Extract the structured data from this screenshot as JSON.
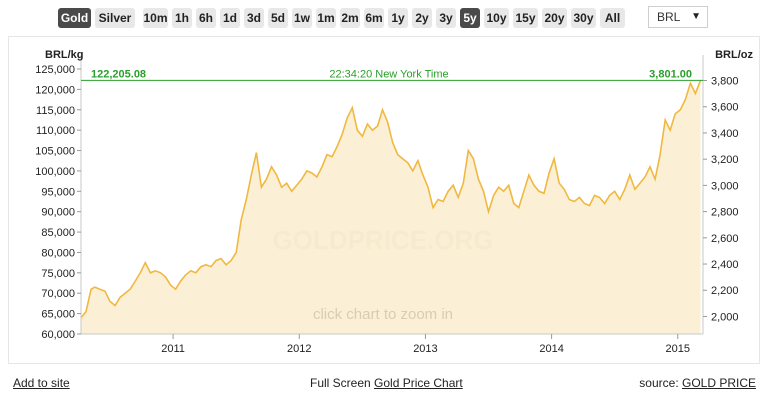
{
  "toolbar": {
    "metals": [
      {
        "label": "Gold",
        "active": true
      },
      {
        "label": "Silver",
        "active": false
      }
    ],
    "ranges": [
      {
        "label": "10m",
        "active": false
      },
      {
        "label": "1h",
        "active": false
      },
      {
        "label": "6h",
        "active": false
      },
      {
        "label": "1d",
        "active": false
      },
      {
        "label": "3d",
        "active": false
      },
      {
        "label": "5d",
        "active": false
      },
      {
        "label": "1w",
        "active": false
      },
      {
        "label": "1m",
        "active": false
      },
      {
        "label": "2m",
        "active": false
      },
      {
        "label": "6m",
        "active": false
      },
      {
        "label": "1y",
        "active": false
      },
      {
        "label": "2y",
        "active": false
      },
      {
        "label": "3y",
        "active": false
      },
      {
        "label": "5y",
        "active": true
      },
      {
        "label": "10y",
        "active": false
      },
      {
        "label": "15y",
        "active": false
      },
      {
        "label": "20y",
        "active": false
      },
      {
        "label": "30y",
        "active": false
      },
      {
        "label": "All",
        "active": false
      }
    ],
    "currency": "BRL",
    "currency_caret": "▼"
  },
  "chart_data": {
    "type": "area",
    "left_axis_unit": "BRL/kg",
    "right_axis_unit": "BRL/oz",
    "current_price_kg": "122,205.08",
    "current_price_oz": "3,801.00",
    "timestamp": "22:34:20 New York Time",
    "watermark": "GOLDPRICE.ORG",
    "hint": "click chart to zoom in",
    "ylim": [
      60000,
      125000
    ],
    "y_ticks": [
      "60,000",
      "65,000",
      "70,000",
      "75,000",
      "80,000",
      "85,000",
      "90,000",
      "95,000",
      "100,000",
      "105,000",
      "110,000",
      "115,000",
      "120,000",
      "125,000"
    ],
    "y_tick_values": [
      60000,
      65000,
      70000,
      75000,
      80000,
      85000,
      90000,
      95000,
      100000,
      105000,
      110000,
      115000,
      120000,
      125000
    ],
    "y2_ticks": [
      "2,000",
      "2,200",
      "2,400",
      "2,600",
      "2,800",
      "3,000",
      "3,200",
      "3,400",
      "3,600",
      "3,800"
    ],
    "y2_tick_values": [
      2000,
      2200,
      2400,
      2600,
      2800,
      3000,
      3200,
      3400,
      3600,
      3800
    ],
    "xlim": [
      2010.27,
      2015.2
    ],
    "x_ticks": [
      "2011",
      "2012",
      "2013",
      "2014",
      "2015"
    ],
    "x_tick_values": [
      2011,
      2012,
      2013,
      2014,
      2015
    ],
    "line_color": "#f0b840",
    "fill_color": "#fbf0d6",
    "marker_color": "#2aa02a",
    "series": [
      {
        "x": [
          2010.27,
          2010.31,
          2010.35,
          2010.38,
          2010.42,
          2010.46,
          2010.5,
          2010.54,
          2010.58,
          2010.62,
          2010.66,
          2010.7,
          2010.74,
          2010.78,
          2010.82,
          2010.86,
          2010.9,
          2010.94,
          2010.98,
          2011.02,
          2011.06,
          2011.1,
          2011.14,
          2011.18,
          2011.22,
          2011.26,
          2011.3,
          2011.34,
          2011.38,
          2011.42,
          2011.46,
          2011.5,
          2011.54,
          2011.58,
          2011.62,
          2011.66,
          2011.7,
          2011.74,
          2011.78,
          2011.82,
          2011.86,
          2011.9,
          2011.94,
          2011.98,
          2012.02,
          2012.06,
          2012.1,
          2012.14,
          2012.18,
          2012.22,
          2012.26,
          2012.3,
          2012.34,
          2012.38,
          2012.42,
          2012.46,
          2012.5,
          2012.54,
          2012.58,
          2012.62,
          2012.66,
          2012.7,
          2012.74,
          2012.78,
          2012.82,
          2012.86,
          2012.9,
          2012.94,
          2012.98,
          2013.02,
          2013.06,
          2013.1,
          2013.14,
          2013.18,
          2013.22,
          2013.26,
          2013.3,
          2013.34,
          2013.38,
          2013.42,
          2013.46,
          2013.5,
          2013.54,
          2013.58,
          2013.62,
          2013.66,
          2013.7,
          2013.74,
          2013.78,
          2013.82,
          2013.86,
          2013.9,
          2013.94,
          2013.98,
          2014.02,
          2014.06,
          2014.1,
          2014.14,
          2014.18,
          2014.22,
          2014.26,
          2014.3,
          2014.34,
          2014.38,
          2014.42,
          2014.46,
          2014.5,
          2014.54,
          2014.58,
          2014.62,
          2014.66,
          2014.7,
          2014.74,
          2014.78,
          2014.82,
          2014.86,
          2014.9,
          2014.94,
          2014.98,
          2015.02,
          2015.06,
          2015.1,
          2015.14,
          2015.18
        ],
        "values": [
          64000,
          65500,
          71000,
          71500,
          71000,
          70500,
          68000,
          67000,
          69000,
          70000,
          71000,
          73000,
          75000,
          77500,
          75000,
          75500,
          75000,
          74000,
          72000,
          71000,
          73000,
          74500,
          75500,
          75000,
          76500,
          77000,
          76500,
          78000,
          78500,
          77000,
          78000,
          80000,
          88000,
          93000,
          99000,
          104500,
          96000,
          98000,
          101000,
          99000,
          96000,
          97000,
          95000,
          96500,
          98000,
          100000,
          99500,
          98500,
          101000,
          104000,
          103500,
          106000,
          109000,
          113000,
          115500,
          110000,
          108500,
          111500,
          110000,
          111000,
          115000,
          112000,
          107000,
          104000,
          103000,
          102000,
          100000,
          102500,
          99000,
          96000,
          91000,
          93000,
          92500,
          95000,
          96500,
          93500,
          97000,
          105000,
          103000,
          98000,
          95000,
          90000,
          94000,
          96000,
          95000,
          96500,
          92000,
          91000,
          95000,
          99000,
          96500,
          95000,
          94500,
          99500,
          103000,
          97000,
          95500,
          93000,
          92500,
          93500,
          92000,
          91500,
          94000,
          93500,
          92000,
          94000,
          95000,
          93000,
          95500,
          99000,
          95500,
          97000,
          98500,
          101000,
          98000,
          104000,
          112500,
          110000,
          114000,
          115000,
          117500,
          121500,
          119000,
          122205
        ],
        "name": ""
      }
    ]
  },
  "footer": {
    "add_to_site": "Add to site",
    "full_screen_prefix": "Full Screen ",
    "full_screen_link": "Gold Price Chart",
    "source_prefix": "source: ",
    "source_link": "GOLD PRICE"
  }
}
